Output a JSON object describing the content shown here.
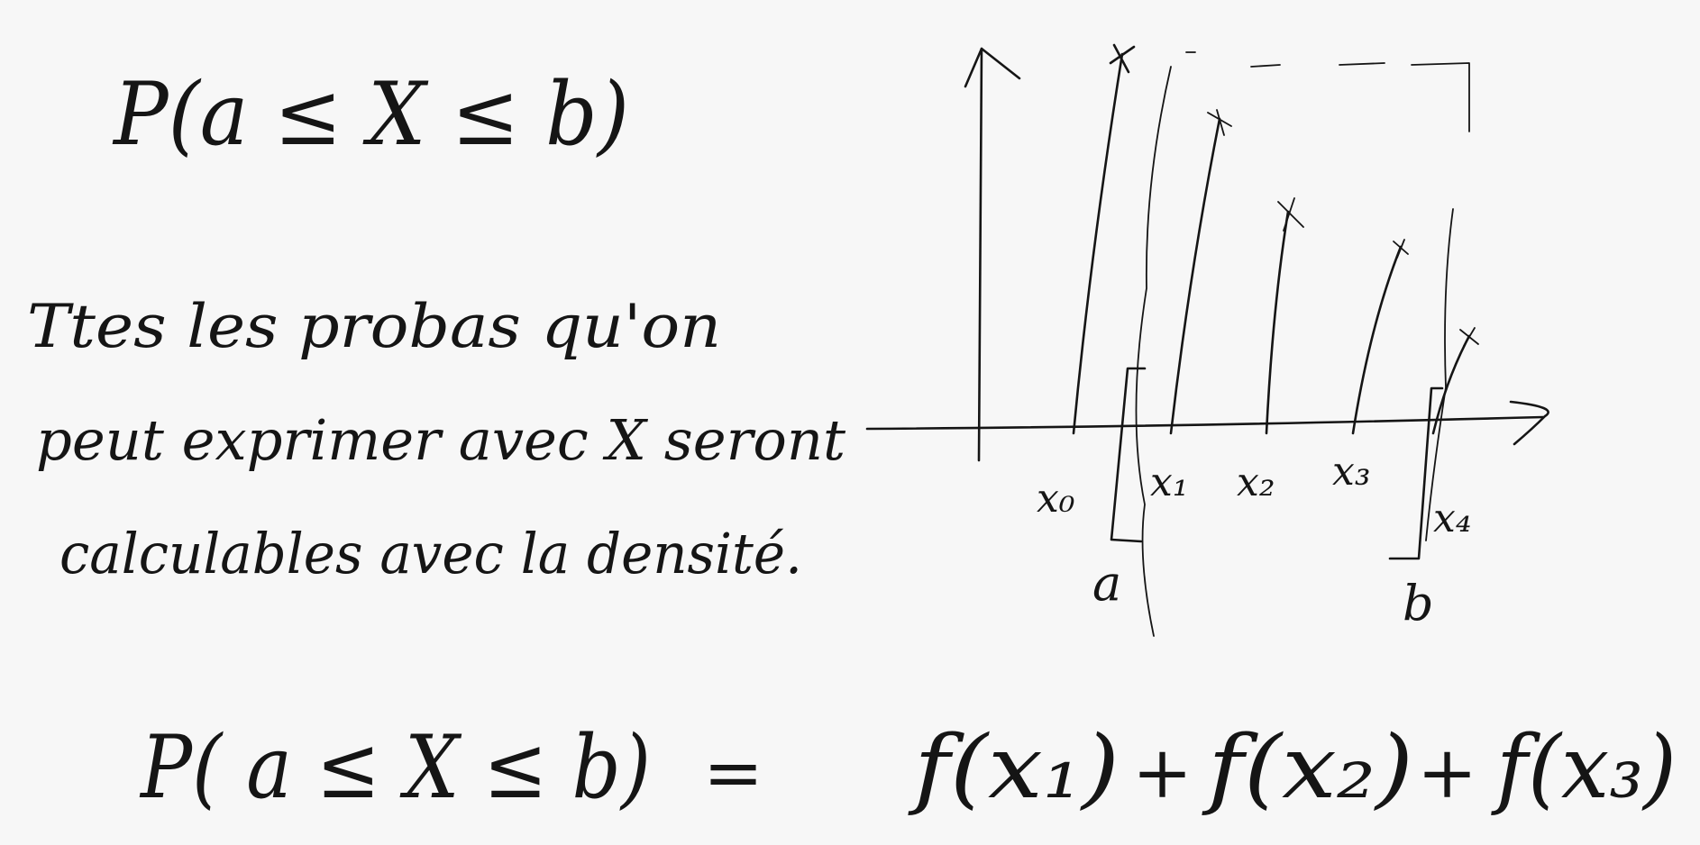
{
  "formula_top": "P(a ≤ X ≤ b)",
  "note": [
    "Ttes les probas qu'on",
    "peut exprimer avec X seront",
    "calculables avec la densité."
  ],
  "diagram": {
    "points": [
      "x₀",
      "x₁",
      "x₂",
      "x₃",
      "x₄"
    ],
    "bounds": [
      "a",
      "b"
    ]
  },
  "formula_bottom": {
    "left": "P( a ≤ X ≤ b)",
    "equals": "=",
    "terms": [
      "f(x₁)",
      "f(x₂)",
      "f(x₃)"
    ],
    "operators": [
      "+",
      "+"
    ]
  }
}
